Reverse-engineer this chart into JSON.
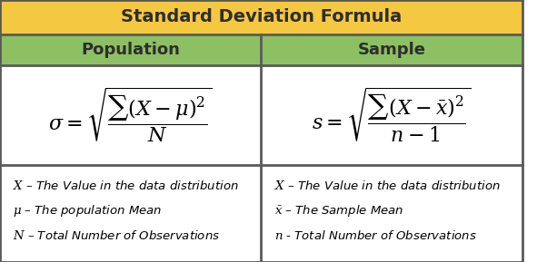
{
  "title": "Standard Deviation Formula",
  "title_bg": "#F5C842",
  "header_bg": "#8DC063",
  "cell_bg": "#FFFFFF",
  "border_color": "#5A5A5A",
  "title_color": "#2E2E2E",
  "header_color": "#2E2E2E",
  "col1_header": "Population",
  "col2_header": "Sample",
  "pop_formula": "$\\sigma = \\sqrt{\\dfrac{\\sum(X - \\mu)^2}{N}}$",
  "sam_formula": "$s = \\sqrt{\\dfrac{\\sum(X - \\bar{x})^2}{n-1}}$",
  "pop_notes": [
    "$X$ – The Value in the data distribution",
    "$\\mu$ – The population Mean",
    "$N$ – Total Number of Observations"
  ],
  "sam_notes": [
    "$X$ – The Value in the data distribution",
    "$\\bar{x}$ – The Sample Mean",
    "$n$ - Total Number of Observations"
  ],
  "figsize": [
    6.02,
    2.89
  ],
  "dpi": 100
}
